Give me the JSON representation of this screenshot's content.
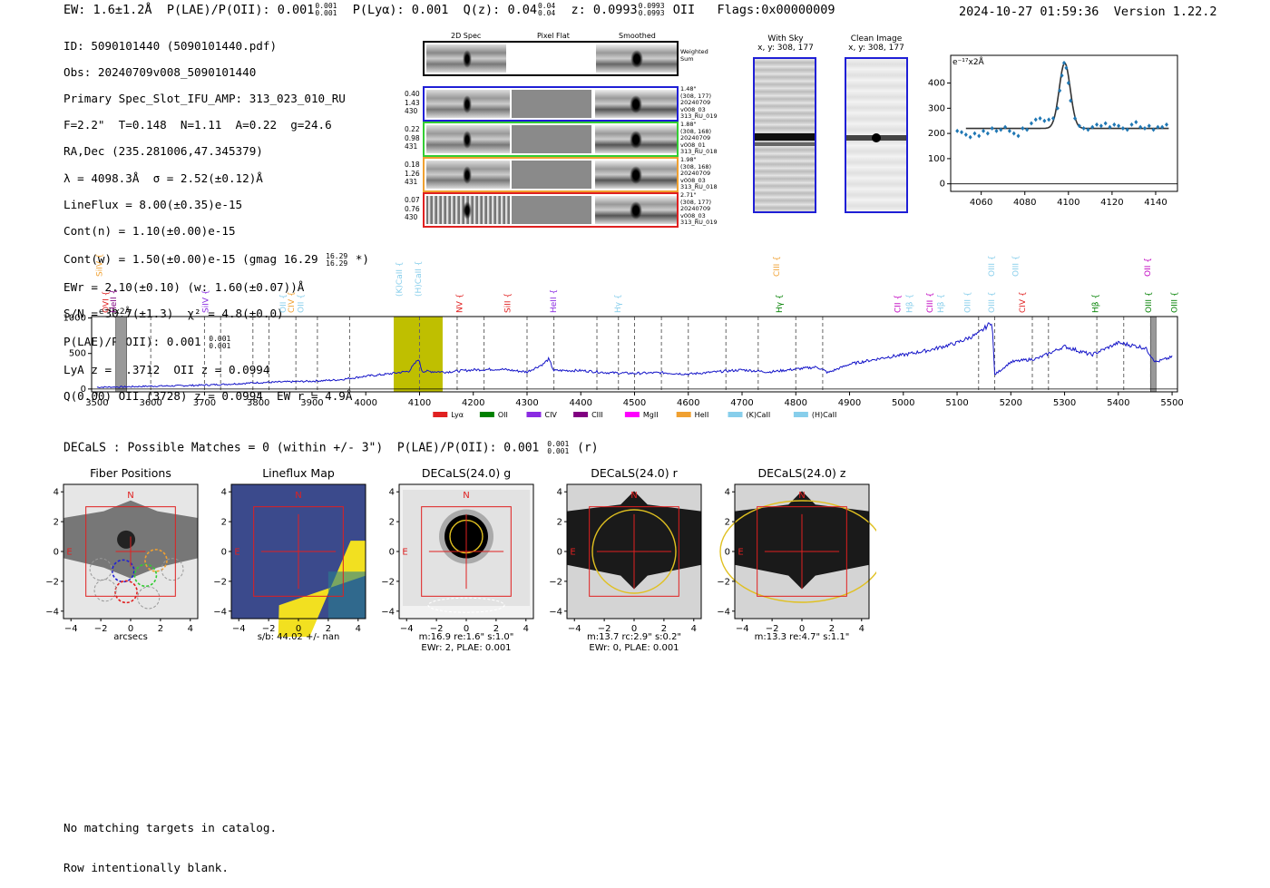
{
  "header": {
    "ew": "EW: 1.6±1.2Å",
    "plae_label": "P(LAE)/P(OII): 0.001",
    "plae_up": "0.001",
    "plae_dn": "0.001",
    "plya": "P(Lyα): 0.001",
    "qz_label": "Q(z): 0.04",
    "qz_up": "0.04",
    "qz_dn": "0.04",
    "z_label": "z: 0.0993",
    "z_up": "0.0993",
    "z_dn": "0.0993",
    "z_line": "OII",
    "flags": "Flags:0x00000009",
    "timestamp": "2024-10-27 01:59:36",
    "version": "Version 1.22.2"
  },
  "info": {
    "line1": "ID: 5090101440 (5090101440.pdf)",
    "line2": "Obs: 20240709v008_5090101440",
    "line3": "Primary Spec_Slot_IFU_AMP: 313_023_010_RU",
    "line4": "F=2.2\"  T=0.148  N=1.11  A=0.22  g=24.6",
    "line5": "RA,Dec (235.281006,47.345379)",
    "line6": "λ = 4098.3Å  σ = 2.52(±0.12)Å",
    "line7": "LineFlux = 8.00(±0.35)e-15",
    "line8": "Cont(n) = 1.10(±0.00)e-15",
    "line9": "Cont(w) = 1.50(±0.00)e-15 (gmag 16.29",
    "line9_up": "16.29",
    "line9_dn": "16.29",
    "line9_end": "*)",
    "line10": "EWr = 2.10(±0.10) (w: 1.60(±0.07))Å",
    "line11": "S/N = 30.7(±1.3)  χ² = 4.8(±0.0)",
    "line12": "P(LAE)/P(OII): 0.001",
    "line12_up": "0.001",
    "line12_dn": "0.001",
    "line13": "LyA z = 2.3712  OII z = 0.0994",
    "line14": "Q(0.00) OII (3728) z = 0.0994  EW r = 4.9Å"
  },
  "cutouts": {
    "col1": "2D Spec",
    "col2": "Pixel Flat",
    "col3": "Smoothed",
    "weighted_sum": "Weighted\nSum",
    "rows": [
      {
        "left": "0.40\n1.43\n430",
        "right": "1.48\"\n(308, 177)\n20240709\nv008_03\n313_RU_019",
        "color": "#1f1fd6"
      },
      {
        "left": "0.22\n0.98\n431",
        "right": "1.88\"\n(308, 168)\n20240709\nv008_01\n313_RU_018",
        "color": "#33cc33"
      },
      {
        "left": "0.18\n1.26\n431",
        "right": "1.98\"\n(308, 168)\n20240709\nv008_03\n313_RU_018",
        "color": "#f0a030"
      },
      {
        "left": "0.07\n0.76\n430",
        "right": "2.71\"\n(308, 177)\n20240709\nv008_03\n313_RU_019",
        "color": "#e02020"
      }
    ],
    "with_sky_title": "With Sky",
    "with_sky_xy": "x, y: 308, 177",
    "clean_title": "Clean Image",
    "clean_xy": "x, y: 308, 177"
  },
  "fit_plot": {
    "unit_label": "e⁻¹⁷x2Å",
    "xticks": [
      "4060",
      "4080",
      "4100",
      "4120",
      "4140"
    ],
    "yticks": [
      "0",
      "100",
      "200",
      "300",
      "400"
    ],
    "xlim": [
      4046,
      4150
    ],
    "ylim": [
      -30,
      510
    ],
    "points": [
      [
        4049,
        210
      ],
      [
        4051,
        205
      ],
      [
        4053,
        195
      ],
      [
        4055,
        185
      ],
      [
        4057,
        200
      ],
      [
        4059,
        190
      ],
      [
        4061,
        210
      ],
      [
        4063,
        200
      ],
      [
        4065,
        220
      ],
      [
        4067,
        210
      ],
      [
        4069,
        215
      ],
      [
        4071,
        225
      ],
      [
        4073,
        210
      ],
      [
        4075,
        200
      ],
      [
        4077,
        190
      ],
      [
        4079,
        220
      ],
      [
        4081,
        215
      ],
      [
        4083,
        240
      ],
      [
        4085,
        255
      ],
      [
        4087,
        260
      ],
      [
        4089,
        250
      ],
      [
        4091,
        255
      ],
      [
        4093,
        260
      ],
      [
        4095,
        300
      ],
      [
        4096,
        370
      ],
      [
        4097,
        430
      ],
      [
        4098,
        480
      ],
      [
        4099,
        460
      ],
      [
        4100,
        400
      ],
      [
        4101,
        330
      ],
      [
        4103,
        260
      ],
      [
        4105,
        230
      ],
      [
        4107,
        220
      ],
      [
        4109,
        215
      ],
      [
        4111,
        225
      ],
      [
        4113,
        235
      ],
      [
        4115,
        230
      ],
      [
        4117,
        240
      ],
      [
        4119,
        225
      ],
      [
        4121,
        235
      ],
      [
        4123,
        230
      ],
      [
        4125,
        220
      ],
      [
        4127,
        215
      ],
      [
        4129,
        235
      ],
      [
        4131,
        245
      ],
      [
        4133,
        225
      ],
      [
        4135,
        220
      ],
      [
        4137,
        230
      ],
      [
        4139,
        215
      ],
      [
        4141,
        225
      ],
      [
        4143,
        225
      ],
      [
        4145,
        235
      ]
    ],
    "fit_center": 4098.3,
    "fit_sigma": 2.52,
    "fit_amp": 260,
    "fit_base": 220,
    "fit_range": [
      4053,
      4146
    ]
  },
  "spectrum": {
    "unit_label": "e⁻¹⁷x2Å",
    "xticks": [
      "3500",
      "3600",
      "3700",
      "3800",
      "3900",
      "4000",
      "4100",
      "4200",
      "4300",
      "4400",
      "4500",
      "4600",
      "4700",
      "4800",
      "4900",
      "5000",
      "5100",
      "5200",
      "5300",
      "5400",
      "5500"
    ],
    "yticks": [
      "0",
      "500",
      "1000"
    ],
    "xlim": [
      3490,
      5510
    ],
    "ylim": [
      -40,
      1020
    ],
    "highlight": [
      4052,
      4143
    ],
    "gray_bands": [
      [
        3535,
        3555
      ],
      [
        5460,
        5470
      ]
    ],
    "dashed_lines": [
      3600,
      3700,
      3730,
      3790,
      3820,
      3870,
      3910,
      3970,
      4100,
      4170,
      4220,
      4300,
      4350,
      4430,
      4470,
      4500,
      4550,
      4600,
      4670,
      4730,
      4800,
      4850,
      5140,
      5170,
      5240,
      5270,
      5360,
      5410,
      5460
    ],
    "line_labels": [
      {
        "t": "OVI",
        "w": 3517,
        "c": "#e02020",
        "row": "low"
      },
      {
        "t": "HeII",
        "w": 3531,
        "c": "#800080",
        "row": "low"
      },
      {
        "t": "SiIV",
        "w": 3505,
        "c": "#f0a030",
        "row": "high"
      },
      {
        "t": "SiIV",
        "w": 3703,
        "c": "#8a2be2",
        "row": "low"
      },
      {
        "t": "OII",
        "w": 3847,
        "c": "#87ceeb",
        "row": "low"
      },
      {
        "t": "CIV",
        "w": 3862,
        "c": "#f0a030",
        "row": "low"
      },
      {
        "t": "OII",
        "w": 3880,
        "c": "#87ceeb",
        "row": "low"
      },
      {
        "t": "(K)CaII",
        "w": 4063,
        "c": "#87ceeb",
        "row": "mid"
      },
      {
        "t": "(H)CaII",
        "w": 4098,
        "c": "#87ceeb",
        "row": "mid"
      },
      {
        "t": "NV",
        "w": 4175,
        "c": "#e02020",
        "row": "low"
      },
      {
        "t": "SiII",
        "w": 4265,
        "c": "#e02020",
        "row": "low"
      },
      {
        "t": "HeII",
        "w": 4350,
        "c": "#8a2be2",
        "row": "low"
      },
      {
        "t": "Hγ",
        "w": 4470,
        "c": "#87ceeb",
        "row": "low"
      },
      {
        "t": "CIII",
        "w": 4765,
        "c": "#f0a030",
        "row": "high"
      },
      {
        "t": "Hγ",
        "w": 4770,
        "c": "#008000",
        "row": "low"
      },
      {
        "t": "CII",
        "w": 4990,
        "c": "#c000c0",
        "row": "low"
      },
      {
        "t": "Hβ",
        "w": 5012,
        "c": "#87ceeb",
        "row": "low"
      },
      {
        "t": "CIII",
        "w": 5050,
        "c": "#c000c0",
        "row": "low"
      },
      {
        "t": "Hβ",
        "w": 5070,
        "c": "#87ceeb",
        "row": "low"
      },
      {
        "t": "OIII",
        "w": 5120,
        "c": "#87ceeb",
        "row": "low"
      },
      {
        "t": "OIII",
        "w": 5165,
        "c": "#87ceeb",
        "row": "low"
      },
      {
        "t": "OIII",
        "w": 5165,
        "c": "#87ceeb",
        "row": "high"
      },
      {
        "t": "OIII",
        "w": 5210,
        "c": "#87ceeb",
        "row": "high"
      },
      {
        "t": "CIV",
        "w": 5222,
        "c": "#e02020",
        "row": "low"
      },
      {
        "t": "Hβ",
        "w": 5358,
        "c": "#008000",
        "row": "low"
      },
      {
        "t": "OIII",
        "w": 5457,
        "c": "#008000",
        "row": "low"
      },
      {
        "t": "OII",
        "w": 5455,
        "c": "#c000c0",
        "row": "high"
      },
      {
        "t": "OIII",
        "w": 5505,
        "c": "#008000",
        "row": "low"
      }
    ],
    "legend": [
      {
        "t": "Lyα",
        "c": "#e02020"
      },
      {
        "t": "OII",
        "c": "#008000"
      },
      {
        "t": "CIV",
        "c": "#8a2be2"
      },
      {
        "t": "CIII",
        "c": "#800080"
      },
      {
        "t": "MgII",
        "c": "#ff00ff"
      },
      {
        "t": "HeII",
        "c": "#f0a030"
      },
      {
        "t": "(K)CaII",
        "c": "#87ceeb"
      },
      {
        "t": "(H)CaII",
        "c": "#87ceeb"
      }
    ],
    "knots": [
      [
        3500,
        25
      ],
      [
        3550,
        30
      ],
      [
        3600,
        40
      ],
      [
        3650,
        45
      ],
      [
        3700,
        55
      ],
      [
        3750,
        70
      ],
      [
        3800,
        90
      ],
      [
        3850,
        100
      ],
      [
        3900,
        110
      ],
      [
        3950,
        130
      ],
      [
        4000,
        180
      ],
      [
        4040,
        210
      ],
      [
        4080,
        250
      ],
      [
        4098,
        420
      ],
      [
        4105,
        250
      ],
      [
        4150,
        240
      ],
      [
        4200,
        270
      ],
      [
        4250,
        280
      ],
      [
        4300,
        240
      ],
      [
        4330,
        350
      ],
      [
        4340,
        420
      ],
      [
        4350,
        260
      ],
      [
        4400,
        260
      ],
      [
        4450,
        230
      ],
      [
        4500,
        220
      ],
      [
        4550,
        230
      ],
      [
        4600,
        210
      ],
      [
        4650,
        240
      ],
      [
        4700,
        270
      ],
      [
        4750,
        240
      ],
      [
        4800,
        280
      ],
      [
        4840,
        310
      ],
      [
        4860,
        230
      ],
      [
        4900,
        350
      ],
      [
        4950,
        420
      ],
      [
        4970,
        450
      ],
      [
        5000,
        480
      ],
      [
        5050,
        550
      ],
      [
        5100,
        650
      ],
      [
        5140,
        780
      ],
      [
        5165,
        950
      ],
      [
        5170,
        200
      ],
      [
        5200,
        380
      ],
      [
        5250,
        430
      ],
      [
        5300,
        600
      ],
      [
        5350,
        480
      ],
      [
        5400,
        650
      ],
      [
        5450,
        580
      ],
      [
        5470,
        380
      ],
      [
        5500,
        450
      ]
    ]
  },
  "decals_summary": {
    "label": "DECaLS : Possible Matches = 0 (within +/- 3\")  P(LAE)/P(OII): 0.001",
    "up": "0.001",
    "dn": "0.001",
    "end": "(r)"
  },
  "panels": [
    {
      "title": "Fiber Positions",
      "cap1": "arcsecs",
      "cap2": ""
    },
    {
      "title": "Lineflux Map",
      "cap1": "s/b: 44.02 +/- nan",
      "cap2": ""
    },
    {
      "title": "DECaLS(24.0) g",
      "cap1": "m:16.9  re:1.6\"  s:1.0\"",
      "cap2": "EWr: 2, PLAE: 0.001"
    },
    {
      "title": "DECaLS(24.0) r",
      "cap1": "m:13.7 rc:2.9\"  s:0.2\"",
      "cap2": "EWr: 0, PLAE: 0.001"
    },
    {
      "title": "DECaLS(24.0) z",
      "cap1": "m:13.3  re:4.7\"  s:1.1\"",
      "cap2": ""
    }
  ],
  "panel_axis": {
    "ticks": [
      "−4",
      "−2",
      "0",
      "2",
      "4"
    ],
    "n_label": "N",
    "e_label": "E"
  },
  "footer": {
    "line1": "No matching targets in catalog.",
    "line2": "Row intentionally blank."
  }
}
